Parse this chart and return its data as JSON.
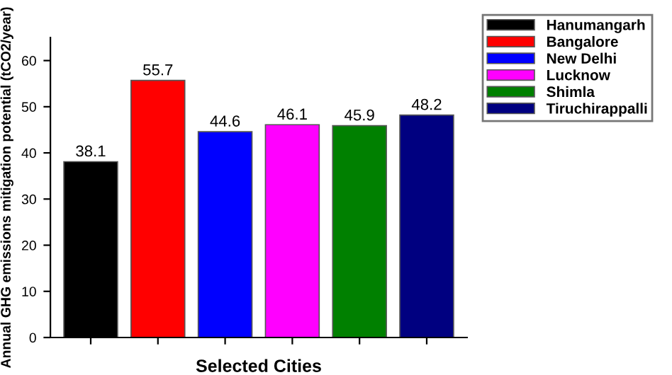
{
  "chart_data": {
    "type": "bar",
    "xlabel": "Selected Cities",
    "ylabel": "Annual GHG emissions mitigation potential (tCO2/year)",
    "categories": [
      null,
      null,
      null,
      null,
      null,
      null
    ],
    "series": [
      {
        "name": "Hanumangarh",
        "color": "#000000",
        "values": [
          38.1,
          null,
          null,
          null,
          null,
          null
        ]
      },
      {
        "name": "Bangalore",
        "color": "#ff0000",
        "values": [
          null,
          55.7,
          null,
          null,
          null,
          null
        ]
      },
      {
        "name": "New Delhi",
        "color": "#0000ff",
        "values": [
          null,
          null,
          44.6,
          null,
          null,
          null
        ]
      },
      {
        "name": "Lucknow",
        "color": "#ff00ff",
        "values": [
          null,
          null,
          null,
          46.1,
          null,
          null
        ]
      },
      {
        "name": "Shimla",
        "color": "#008000",
        "values": [
          null,
          null,
          null,
          null,
          45.9,
          null
        ]
      },
      {
        "name": "Tiruchirappalli",
        "color": "#000080",
        "values": [
          null,
          null,
          null,
          null,
          null,
          48.2
        ]
      }
    ],
    "ylim": [
      0,
      65
    ],
    "yticks": [
      0,
      10,
      20,
      30,
      40,
      50,
      60
    ],
    "data_labels": true,
    "legend": "top right",
    "grid": false
  }
}
